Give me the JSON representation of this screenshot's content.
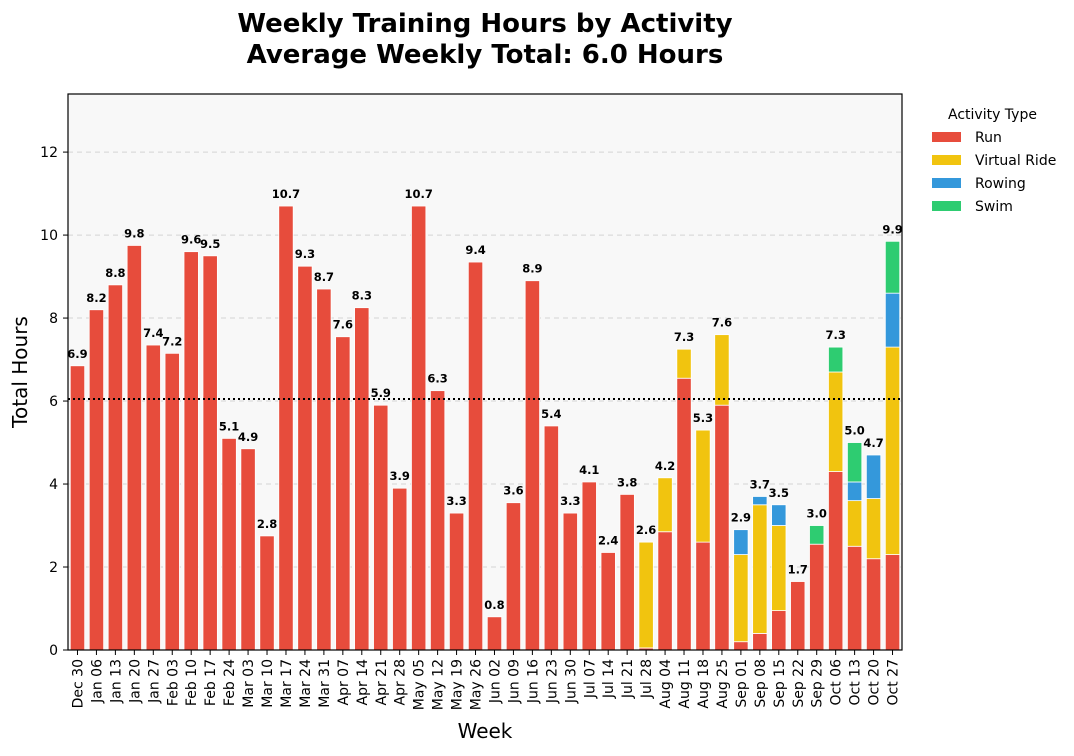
{
  "chart_data": {
    "type": "bar",
    "stacked": true,
    "title": "Weekly Training Hours by Activity",
    "subtitle": "Average Weekly Total: 6.0 Hours",
    "xlabel": "Week",
    "ylabel": "Total Hours",
    "ylim": [
      0,
      13.4
    ],
    "yticks": [
      0,
      2,
      4,
      6,
      8,
      10,
      12
    ],
    "grid": "horizontal dashed",
    "average_line": 6.05,
    "legend": {
      "title": "Activity Type",
      "placement": "outside-top-right"
    },
    "categories": [
      "Dec 30",
      "Jan 06",
      "Jan 13",
      "Jan 20",
      "Jan 27",
      "Feb 03",
      "Feb 10",
      "Feb 17",
      "Feb 24",
      "Mar 03",
      "Mar 10",
      "Mar 17",
      "Mar 24",
      "Mar 31",
      "Apr 07",
      "Apr 14",
      "Apr 21",
      "Apr 28",
      "May 05",
      "May 12",
      "May 19",
      "May 26",
      "Jun 02",
      "Jun 09",
      "Jun 16",
      "Jun 23",
      "Jun 30",
      "Jul 07",
      "Jul 14",
      "Jul 21",
      "Jul 28",
      "Aug 04",
      "Aug 11",
      "Aug 18",
      "Aug 25",
      "Sep 01",
      "Sep 08",
      "Sep 15",
      "Sep 22",
      "Sep 29",
      "Oct 06",
      "Oct 13",
      "Oct 20",
      "Oct 27"
    ],
    "series": [
      {
        "name": "Run",
        "color": "#e74c3c",
        "values": [
          6.85,
          8.2,
          8.8,
          9.75,
          7.35,
          7.15,
          9.6,
          9.5,
          5.1,
          4.85,
          2.75,
          10.7,
          9.25,
          8.7,
          7.55,
          8.25,
          5.9,
          3.9,
          10.7,
          6.25,
          3.3,
          9.35,
          0.8,
          3.55,
          8.9,
          5.4,
          3.3,
          4.05,
          2.35,
          3.75,
          0.05,
          2.85,
          6.55,
          2.6,
          5.9,
          0.2,
          0.4,
          0.95,
          1.65,
          2.55,
          4.3,
          2.5,
          2.2,
          2.3
        ]
      },
      {
        "name": "Virtual Ride",
        "color": "#f1c40f",
        "values": [
          0,
          0,
          0,
          0,
          0,
          0,
          0,
          0,
          0,
          0,
          0,
          0,
          0,
          0,
          0,
          0,
          0,
          0,
          0,
          0,
          0,
          0,
          0,
          0,
          0,
          0,
          0,
          0,
          0,
          0,
          2.55,
          1.3,
          0.7,
          2.7,
          1.7,
          2.1,
          3.1,
          2.05,
          0,
          0,
          2.4,
          1.1,
          1.45,
          5.0
        ]
      },
      {
        "name": "Rowing",
        "color": "#3498db",
        "values": [
          0,
          0,
          0,
          0,
          0,
          0,
          0,
          0,
          0,
          0,
          0,
          0,
          0,
          0,
          0,
          0,
          0,
          0,
          0,
          0,
          0,
          0,
          0,
          0,
          0,
          0,
          0,
          0,
          0,
          0,
          0,
          0,
          0,
          0,
          0,
          0.6,
          0.2,
          0.5,
          0,
          0,
          0,
          0.45,
          1.05,
          1.3
        ]
      },
      {
        "name": "Swim",
        "color": "#2ecc71",
        "values": [
          0,
          0,
          0,
          0,
          0,
          0,
          0,
          0,
          0,
          0,
          0,
          0,
          0,
          0,
          0,
          0,
          0,
          0,
          0,
          0,
          0,
          0,
          0,
          0,
          0,
          0,
          0,
          0,
          0,
          0,
          0,
          0,
          0,
          0,
          0,
          0,
          0,
          0,
          0,
          0.45,
          0.6,
          0.95,
          0,
          1.25
        ]
      }
    ],
    "totals_labels": [
      "6.9",
      "8.2",
      "8.8",
      "9.8",
      "7.4",
      "7.2",
      "9.6",
      "9.5",
      "5.1",
      "4.9",
      "2.8",
      "10.7",
      "9.3",
      "8.7",
      "7.6",
      "8.3",
      "5.9",
      "3.9",
      "10.7",
      "6.3",
      "3.3",
      "9.4",
      "0.8",
      "3.6",
      "8.9",
      "5.4",
      "3.3",
      "4.1",
      "2.4",
      "3.8",
      "2.6",
      "4.2",
      "7.3",
      "5.3",
      "7.6",
      "2.9",
      "3.7",
      "3.5",
      "1.7",
      "3.0",
      "7.3",
      "5.0",
      "4.7",
      "9.9"
    ]
  }
}
